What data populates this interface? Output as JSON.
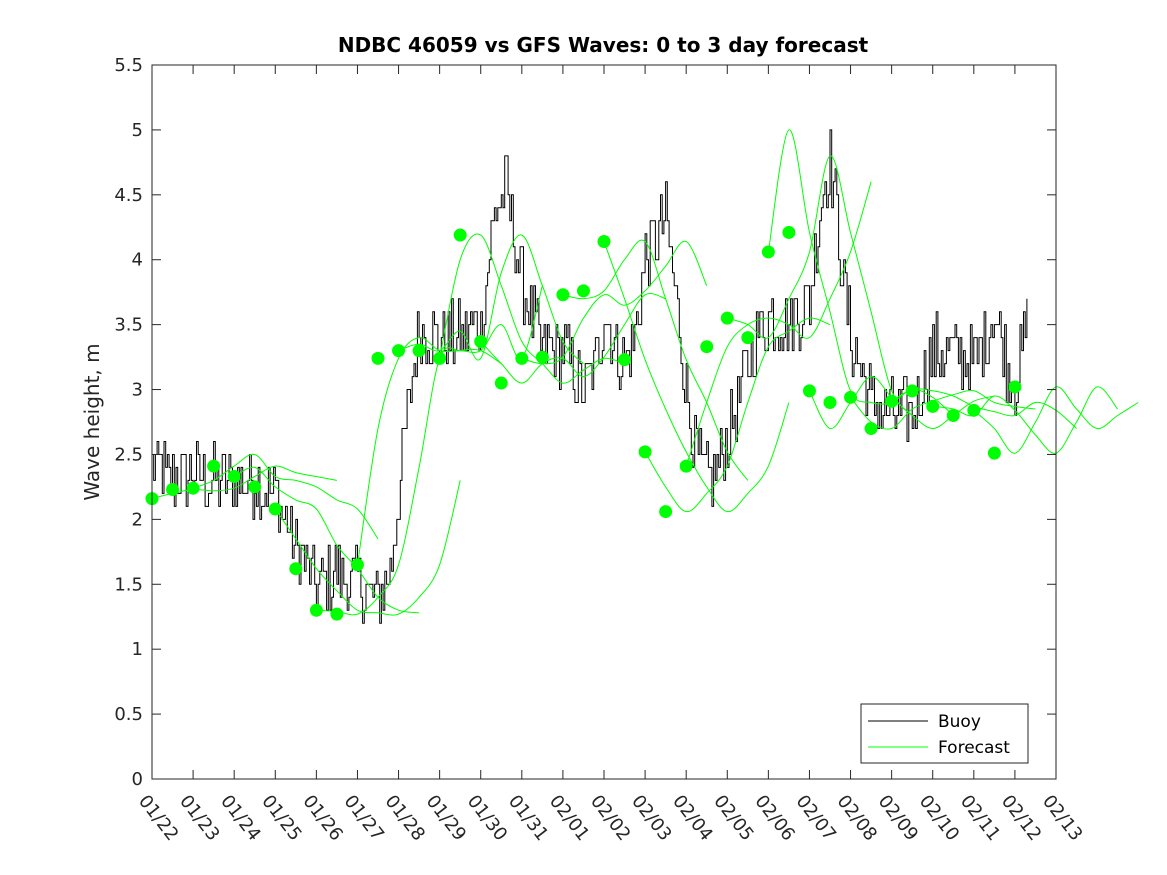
{
  "chart_data": {
    "type": "line",
    "title": "NDBC 46059 vs GFS Waves: 0 to 3 day forecast",
    "xlabel": "",
    "ylabel": "Wave height, m",
    "xlim": [
      0,
      22
    ],
    "ylim": [
      0,
      5.5
    ],
    "x_tick_labels": [
      "01/22",
      "01/23",
      "01/24",
      "01/25",
      "01/26",
      "01/27",
      "01/28",
      "01/29",
      "01/30",
      "01/31",
      "02/01",
      "02/02",
      "02/03",
      "02/04",
      "02/05",
      "02/06",
      "02/07",
      "02/08",
      "02/09",
      "02/10",
      "02/11",
      "02/12",
      "02/13"
    ],
    "y_ticks": [
      0,
      0.5,
      1,
      1.5,
      2,
      2.5,
      3,
      3.5,
      4,
      4.5,
      5,
      5.5
    ],
    "y_tick_labels": [
      "0",
      "0.5",
      "1",
      "1.5",
      "2",
      "2.5",
      "3",
      "3.5",
      "4",
      "4.5",
      "5",
      "5.5"
    ],
    "grid": false,
    "legend": {
      "position": "bottom-right",
      "entries": [
        "Buoy",
        "Forecast"
      ]
    },
    "colors": {
      "buoy": "#000000",
      "forecast": "#00ff00"
    },
    "buoy_trend": {
      "x": [
        0,
        0.5,
        1,
        1.5,
        2,
        2.5,
        3,
        3.5,
        4,
        4.5,
        5,
        5.5,
        5.8,
        6.1,
        6.5,
        7,
        7.5,
        8,
        8.3,
        8.6,
        9,
        9.5,
        10,
        10.5,
        10.8,
        11,
        11.4,
        11.7,
        12,
        12.5,
        12.8,
        13,
        13.3,
        13.6,
        14,
        14.5,
        15,
        15.5,
        16,
        16.3,
        16.5,
        16.8,
        17,
        17.5,
        18,
        18.5,
        19,
        19.5,
        20,
        20.5,
        20.8,
        21,
        21.3
      ],
      "y": [
        2.4,
        2.3,
        2.35,
        2.3,
        2.3,
        2.3,
        2.2,
        1.8,
        1.5,
        1.6,
        1.5,
        1.4,
        1.6,
        2.5,
        3.5,
        3.4,
        3.4,
        3.5,
        4.3,
        4.6,
        3.8,
        3.3,
        3.3,
        3.0,
        3.2,
        3.6,
        3.2,
        3.3,
        4.0,
        4.3,
        3.6,
        3.0,
        2.4,
        2.3,
        2.6,
        3.2,
        3.6,
        3.5,
        3.7,
        4.5,
        4.8,
        3.9,
        3.4,
        2.9,
        2.8,
        2.8,
        3.3,
        3.3,
        3.2,
        3.6,
        3.2,
        3.0,
        3.5
      ]
    },
    "forecast_points": {
      "x": [
        0,
        0.5,
        1,
        1.5,
        2,
        2.5,
        3,
        3.5,
        4,
        4.5,
        5,
        5.5,
        6,
        6.5,
        7,
        7.5,
        8,
        8.5,
        9,
        9.5,
        10,
        10.5,
        11,
        11.5,
        12,
        12.5,
        13,
        13.5,
        14,
        14.5,
        15,
        15.5,
        16,
        16.5,
        17,
        17.5,
        18,
        18.5,
        19,
        19.5,
        20,
        20.5,
        21
      ],
      "y": [
        2.16,
        2.23,
        2.24,
        2.41,
        2.33,
        2.25,
        2.08,
        1.62,
        1.3,
        1.27,
        1.65,
        3.24,
        3.3,
        3.3,
        3.24,
        4.19,
        3.37,
        3.05,
        3.24,
        3.25,
        3.73,
        3.76,
        4.14,
        3.23,
        2.52,
        2.06,
        2.41,
        3.33,
        3.55,
        3.4,
        4.06,
        4.21,
        2.99,
        2.9,
        2.94,
        2.7,
        2.91,
        2.99,
        2.87,
        2.8,
        2.84,
        2.51,
        3.02
      ]
    },
    "forecast_runs": [
      {
        "start": 0,
        "y": [
          2.16,
          2.2,
          2.23,
          2.22,
          2.24,
          2.33,
          2.41,
          2.36,
          2.33,
          2.3
        ]
      },
      {
        "start": 1,
        "y": [
          2.24,
          2.3,
          2.41,
          2.5,
          2.33,
          2.3,
          2.25,
          2.15,
          2.08,
          1.85
        ]
      },
      {
        "start": 2,
        "y": [
          2.33,
          2.4,
          2.25,
          2.15,
          2.08,
          1.8,
          1.62,
          1.4,
          1.3,
          1.28
        ]
      },
      {
        "start": 3,
        "y": [
          2.08,
          1.85,
          1.62,
          1.45,
          1.3,
          1.28,
          1.27,
          1.4,
          1.65,
          2.3
        ]
      },
      {
        "start": 4,
        "y": [
          1.3,
          1.29,
          1.27,
          1.4,
          1.65,
          2.4,
          3.24,
          3.3,
          3.3,
          3.2
        ]
      },
      {
        "start": 5,
        "y": [
          1.65,
          2.7,
          3.24,
          3.4,
          3.3,
          3.3,
          3.3,
          3.5,
          3.24,
          3.8
        ]
      },
      {
        "start": 6,
        "y": [
          3.3,
          3.35,
          3.3,
          3.45,
          3.24,
          3.9,
          4.19,
          3.8,
          3.37,
          3.2
        ]
      },
      {
        "start": 7,
        "y": [
          3.24,
          4.0,
          4.19,
          3.8,
          3.37,
          3.2,
          3.05,
          3.15,
          3.24,
          3.2
        ]
      },
      {
        "start": 8,
        "y": [
          3.37,
          3.2,
          3.05,
          3.2,
          3.24,
          3.1,
          3.25,
          3.5,
          3.73,
          3.7
        ]
      },
      {
        "start": 9,
        "y": [
          3.24,
          3.2,
          3.25,
          3.55,
          3.73,
          3.65,
          3.76,
          3.95,
          4.14,
          3.8
        ]
      },
      {
        "start": 10,
        "y": [
          3.73,
          3.7,
          3.76,
          4.0,
          4.14,
          3.7,
          3.23,
          2.9,
          2.52,
          2.3
        ]
      },
      {
        "start": 11,
        "y": [
          4.14,
          3.7,
          3.23,
          2.85,
          2.52,
          2.25,
          2.06,
          2.2,
          2.41,
          2.9
        ]
      },
      {
        "start": 12,
        "y": [
          2.52,
          2.25,
          2.06,
          2.2,
          2.41,
          2.9,
          3.33,
          3.45,
          3.55,
          3.5
        ]
      },
      {
        "start": 13,
        "y": [
          2.41,
          2.9,
          3.33,
          3.5,
          3.55,
          3.5,
          3.4,
          3.7,
          4.06,
          4.6
        ]
      },
      {
        "start": 14,
        "y": [
          3.55,
          3.5,
          3.4,
          3.7,
          4.06,
          4.8,
          4.21,
          3.6,
          2.99,
          2.8
        ]
      },
      {
        "start": 15,
        "y": [
          4.06,
          5.0,
          4.21,
          3.6,
          2.99,
          2.9,
          2.9,
          3.0,
          2.94,
          2.8
        ]
      },
      {
        "start": 16,
        "y": [
          2.99,
          2.7,
          2.9,
          3.1,
          2.94,
          2.8,
          2.7,
          2.8,
          2.91,
          2.95
        ]
      },
      {
        "start": 17,
        "y": [
          2.94,
          2.75,
          2.7,
          2.85,
          2.91,
          2.96,
          2.99,
          2.9,
          2.87,
          2.85
        ]
      },
      {
        "start": 18,
        "y": [
          2.91,
          3.0,
          2.99,
          2.95,
          2.87,
          2.83,
          2.8,
          2.9,
          2.84,
          2.7
        ]
      },
      {
        "start": 19,
        "y": [
          2.87,
          2.85,
          2.8,
          2.95,
          2.84,
          2.65,
          2.51,
          2.75,
          3.02,
          2.85
        ]
      },
      {
        "start": 20,
        "y": [
          2.84,
          2.7,
          2.51,
          2.75,
          3.02,
          2.85,
          2.7,
          2.8,
          2.9
        ]
      }
    ]
  }
}
